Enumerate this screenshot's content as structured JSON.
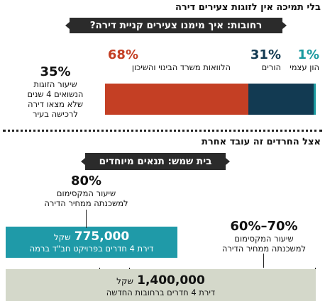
{
  "header": {
    "title": "בלי תמיכה אין לזוגות צעירים דירה",
    "banner": "רחובות: איך מימנו צעירים קניית דירה?"
  },
  "chart_data": [
    {
      "type": "bar",
      "orientation": "horizontal-stacked",
      "title": "רחובות: איך מימנו צעירים קניית דירה?",
      "series": [
        {
          "name": "הון עצמי",
          "value": 1,
          "label": "1%",
          "color": "#1a9aa0"
        },
        {
          "name": "הורים",
          "value": 31,
          "label": "31%",
          "color": "#123a52"
        },
        {
          "name": "הלוואות משרד הבינוי והשיכון",
          "value": 68,
          "label": "68%",
          "color": "#c43f24"
        }
      ]
    },
    {
      "type": "bar",
      "orientation": "horizontal",
      "title": "בית שמש: תנאים מיוחדים",
      "categories": [
        "דירת 4 חדרים בפרויקט חב\"ד ברמה",
        "דירת 4 חדרים ברחובות החדשה"
      ],
      "values": [
        775000,
        1400000
      ],
      "unit": "שקל",
      "colors": [
        "#1f9aa8",
        "#d4d8ca"
      ]
    }
  ],
  "side_stat": {
    "value": "35%",
    "lines": [
      "שיעור הזוגות",
      "הנשואים 4 שנים",
      "שלא מצאו דירה",
      "לרכישה בעיר"
    ]
  },
  "section2": {
    "title": "אצל החרדים זה עובד אחרת",
    "banner": "בית שמש: תנאים מיוחדים"
  },
  "mortgage_80": {
    "value": "80%",
    "lines": [
      "שיעור המקסימום",
      "למשכנתה ממחיר הדירה"
    ]
  },
  "mortgage_6070": {
    "value": "70%–60%",
    "lines": [
      "שיעור המקסימום",
      "למשכנתה ממחיר הדירה"
    ]
  },
  "box1": {
    "amount": "775,000",
    "unit": "שקל",
    "desc": "דירת 4 חדרים בפרויקט חב\"ד ברמה"
  },
  "box2": {
    "amount": "1,400,000",
    "unit": "שקל",
    "desc": "דירת 4 חדרים ברחובות החדשה"
  }
}
